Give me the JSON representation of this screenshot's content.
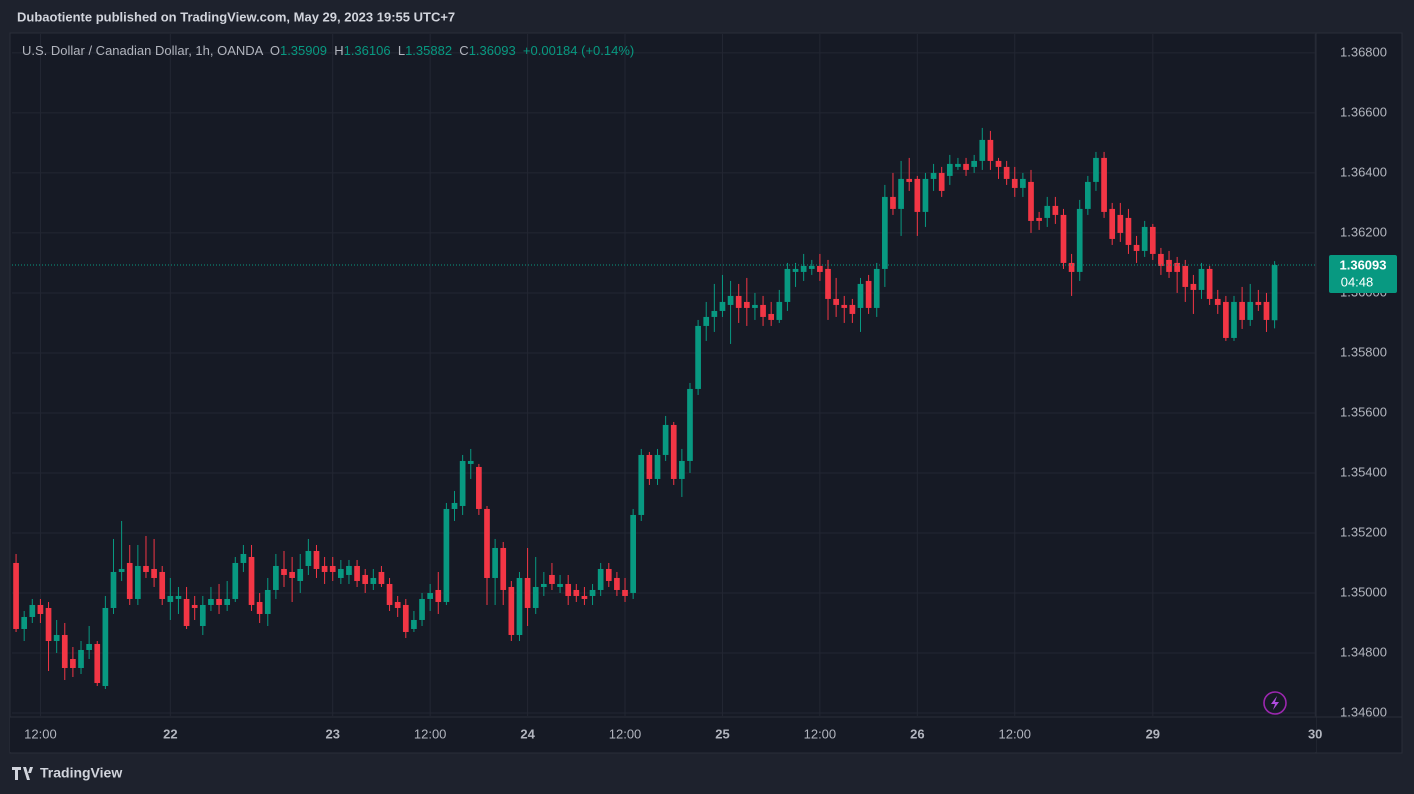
{
  "publisher_line": "Dubaotiente published on TradingView.com, May 29, 2023 19:55 UTC+7",
  "brand": "TradingView",
  "chart_data": {
    "type": "candlestick",
    "title": "U.S. Dollar / Canadian Dollar, 1h, OANDA",
    "ohlc_labels": [
      "O",
      "H",
      "L",
      "C"
    ],
    "change_label": "+0.00184 (+0.14%)",
    "countdown": "04:48",
    "up_color": "#089981",
    "down_color": "#f23645",
    "grid": true,
    "xlim": [
      -0.5,
      160.1
    ],
    "xticks": [
      {
        "value": 3,
        "label": "12:00"
      },
      {
        "value": 19,
        "label": "22"
      },
      {
        "value": 39,
        "label": "23"
      },
      {
        "value": 51,
        "label": "12:00"
      },
      {
        "value": 63,
        "label": "24"
      },
      {
        "value": 75,
        "label": "12:00"
      },
      {
        "value": 87,
        "label": "25"
      },
      {
        "value": 99,
        "label": "12:00"
      },
      {
        "value": 111,
        "label": "26"
      },
      {
        "value": 123,
        "label": "12:00"
      },
      {
        "value": 140,
        "label": "29"
      },
      {
        "value": 160,
        "label": "30"
      }
    ],
    "ylim": [
      1.3459,
      1.36863
    ],
    "yticks": [
      {
        "value": 1.346,
        "label": "1.34600"
      },
      {
        "value": 1.348,
        "label": "1.34800"
      },
      {
        "value": 1.35,
        "label": "1.35000"
      },
      {
        "value": 1.352,
        "label": "1.35200"
      },
      {
        "value": 1.354,
        "label": "1.35400"
      },
      {
        "value": 1.356,
        "label": "1.35600"
      },
      {
        "value": 1.358,
        "label": "1.35800"
      },
      {
        "value": 1.36,
        "label": "1.36000"
      },
      {
        "value": 1.362,
        "label": "1.36200"
      },
      {
        "value": 1.364,
        "label": "1.36400"
      },
      {
        "value": 1.366,
        "label": "1.36600"
      },
      {
        "value": 1.368,
        "label": "1.36800"
      }
    ],
    "open": [
      1.351,
      1.3488,
      1.3492,
      1.3496,
      1.3495,
      1.3484,
      1.3486,
      1.3478,
      1.3475,
      1.3481,
      1.3483,
      1.3469,
      1.3495,
      1.3507,
      1.351,
      1.3498,
      1.3509,
      1.3508,
      1.3507,
      1.3497,
      1.3498,
      1.3498,
      1.3496,
      1.3489,
      1.3496,
      1.3498,
      1.3496,
      1.3498,
      1.351,
      1.3512,
      1.3497,
      1.3493,
      1.3501,
      1.3508,
      1.3507,
      1.3504,
      1.3509,
      1.3514,
      1.3509,
      1.3509,
      1.3505,
      1.3506,
      1.3509,
      1.3506,
      1.3503,
      1.3507,
      1.3503,
      1.3497,
      1.3496,
      1.3488,
      1.3491,
      1.3498,
      1.3501,
      1.3497,
      1.3528,
      1.3529,
      1.3543,
      1.3542,
      1.3528,
      1.3505,
      1.3515,
      1.3502,
      1.3486,
      1.3505,
      1.3495,
      1.3502,
      1.3506,
      1.3502,
      1.3503,
      1.3501,
      1.3499,
      1.3499,
      1.3501,
      1.3508,
      1.3505,
      1.3501,
      1.35,
      1.3526,
      1.3546,
      1.3538,
      1.3546,
      1.3556,
      1.3538,
      1.3544,
      1.3568,
      1.3589,
      1.3592,
      1.3594,
      1.3596,
      1.3599,
      1.3597,
      1.3595,
      1.3596,
      1.3593,
      1.3591,
      1.3597,
      1.3607,
      1.3607,
      1.3608,
      1.3609,
      1.3608,
      1.3598,
      1.3596,
      1.3596,
      1.3595,
      1.3604,
      1.3595,
      1.3608,
      1.3632,
      1.3628,
      1.3638,
      1.3638,
      1.3627,
      1.3638,
      1.364,
      1.3639,
      1.3642,
      1.3643,
      1.3642,
      1.3644,
      1.3651,
      1.3644,
      1.3642,
      1.3638,
      1.3635,
      1.3637,
      1.3625,
      1.3625,
      1.3629,
      1.3626,
      1.361,
      1.3607,
      1.3628,
      1.3637,
      1.3645,
      1.3628,
      1.3626,
      1.3625,
      1.3616,
      1.3614,
      1.3622,
      1.3613,
      1.3611,
      1.361,
      1.3609,
      1.3603,
      1.3601,
      1.3608,
      1.3598,
      1.3597,
      1.3585,
      1.3597,
      1.3591,
      1.3597,
      1.3597,
      1.35909
    ],
    "high": [
      1.3513,
      1.3494,
      1.3498,
      1.3498,
      1.3497,
      1.3491,
      1.349,
      1.3482,
      1.3484,
      1.3489,
      1.3484,
      1.3499,
      1.3518,
      1.3524,
      1.3516,
      1.3516,
      1.3519,
      1.3518,
      1.3509,
      1.3505,
      1.3502,
      1.3502,
      1.3499,
      1.3499,
      1.3502,
      1.3503,
      1.3504,
      1.3512,
      1.3516,
      1.3516,
      1.35,
      1.3505,
      1.3513,
      1.3514,
      1.3512,
      1.3513,
      1.3518,
      1.3516,
      1.3512,
      1.3512,
      1.3511,
      1.3511,
      1.3511,
      1.3508,
      1.3508,
      1.3509,
      1.3505,
      1.3499,
      1.3498,
      1.3494,
      1.35,
      1.3503,
      1.3507,
      1.353,
      1.3534,
      1.3546,
      1.3548,
      1.3543,
      1.3529,
      1.3518,
      1.3517,
      1.3504,
      1.3507,
      1.3515,
      1.3512,
      1.3507,
      1.351,
      1.3506,
      1.3506,
      1.3503,
      1.3502,
      1.3503,
      1.351,
      1.351,
      1.3507,
      1.3505,
      1.3528,
      1.3548,
      1.3547,
      1.3548,
      1.3559,
      1.3557,
      1.3548,
      1.357,
      1.3591,
      1.3597,
      1.3603,
      1.3606,
      1.3604,
      1.3603,
      1.3605,
      1.36,
      1.3599,
      1.3597,
      1.3601,
      1.361,
      1.361,
      1.3613,
      1.3611,
      1.3613,
      1.3611,
      1.3605,
      1.3599,
      1.3598,
      1.3605,
      1.3606,
      1.361,
      1.3636,
      1.364,
      1.3644,
      1.3645,
      1.3639,
      1.364,
      1.3643,
      1.3642,
      1.3646,
      1.3645,
      1.3645,
      1.3646,
      1.3655,
      1.3654,
      1.3645,
      1.3644,
      1.3642,
      1.364,
      1.3641,
      1.3627,
      1.3632,
      1.3632,
      1.3628,
      1.3613,
      1.3631,
      1.3639,
      1.3647,
      1.3647,
      1.363,
      1.363,
      1.3628,
      1.3619,
      1.3624,
      1.3623,
      1.3615,
      1.3614,
      1.3612,
      1.3611,
      1.3606,
      1.361,
      1.3609,
      1.3601,
      1.3599,
      1.3599,
      1.3602,
      1.3603,
      1.3601,
      1.36,
      1.36106
    ],
    "low": [
      1.3487,
      1.3484,
      1.349,
      1.349,
      1.3474,
      1.348,
      1.3471,
      1.3472,
      1.3473,
      1.3478,
      1.3469,
      1.3468,
      1.3493,
      1.3504,
      1.3496,
      1.3496,
      1.3505,
      1.3502,
      1.3496,
      1.3491,
      1.3493,
      1.3488,
      1.3491,
      1.3486,
      1.3494,
      1.3493,
      1.3494,
      1.3497,
      1.3507,
      1.3494,
      1.349,
      1.3489,
      1.3498,
      1.3502,
      1.3497,
      1.35,
      1.3506,
      1.3505,
      1.3503,
      1.3504,
      1.3503,
      1.3503,
      1.3502,
      1.35,
      1.3501,
      1.3502,
      1.3494,
      1.3492,
      1.3485,
      1.3487,
      1.3489,
      1.3494,
      1.3493,
      1.3496,
      1.3524,
      1.3526,
      1.3538,
      1.3526,
      1.3496,
      1.3496,
      1.3496,
      1.3484,
      1.3484,
      1.3489,
      1.3493,
      1.3499,
      1.3501,
      1.35,
      1.3496,
      1.3497,
      1.3496,
      1.3496,
      1.3499,
      1.3502,
      1.3499,
      1.3497,
      1.3498,
      1.3524,
      1.3536,
      1.3536,
      1.3544,
      1.3536,
      1.3532,
      1.354,
      1.3566,
      1.3584,
      1.3587,
      1.3592,
      1.3583,
      1.359,
      1.3589,
      1.3591,
      1.3589,
      1.3589,
      1.359,
      1.3594,
      1.3602,
      1.3604,
      1.3606,
      1.3604,
      1.3591,
      1.3592,
      1.359,
      1.359,
      1.3587,
      1.3593,
      1.3592,
      1.3602,
      1.3626,
      1.3619,
      1.3634,
      1.3619,
      1.3622,
      1.3634,
      1.3632,
      1.3636,
      1.3641,
      1.3639,
      1.364,
      1.3641,
      1.3641,
      1.3638,
      1.3636,
      1.3632,
      1.3632,
      1.362,
      1.3621,
      1.3622,
      1.3623,
      1.3608,
      1.3599,
      1.3604,
      1.3626,
      1.3634,
      1.3625,
      1.3616,
      1.3617,
      1.3613,
      1.361,
      1.3612,
      1.3611,
      1.3606,
      1.3605,
      1.36,
      1.3597,
      1.3593,
      1.3598,
      1.3596,
      1.3593,
      1.3584,
      1.3584,
      1.3588,
      1.3589,
      1.3594,
      1.3587,
      1.35882
    ],
    "close": [
      1.3488,
      1.3492,
      1.3496,
      1.3493,
      1.3484,
      1.3486,
      1.3475,
      1.3475,
      1.3481,
      1.3483,
      1.347,
      1.3495,
      1.3507,
      1.3508,
      1.3498,
      1.3509,
      1.3507,
      1.3505,
      1.3498,
      1.3499,
      1.3499,
      1.3489,
      1.3495,
      1.3496,
      1.3498,
      1.3496,
      1.3498,
      1.351,
      1.3513,
      1.3496,
      1.3493,
      1.3501,
      1.3509,
      1.3506,
      1.3505,
      1.3508,
      1.3514,
      1.3508,
      1.3507,
      1.3507,
      1.3508,
      1.3509,
      1.3504,
      1.3503,
      1.3505,
      1.3503,
      1.3496,
      1.3495,
      1.3487,
      1.3491,
      1.3498,
      1.35,
      1.3497,
      1.3528,
      1.353,
      1.3544,
      1.3544,
      1.3528,
      1.3505,
      1.3515,
      1.3501,
      1.3486,
      1.3505,
      1.3495,
      1.3502,
      1.3503,
      1.3503,
      1.3503,
      1.3499,
      1.3499,
      1.3498,
      1.3501,
      1.3508,
      1.3504,
      1.3501,
      1.3499,
      1.3526,
      1.3546,
      1.3538,
      1.3546,
      1.3556,
      1.3538,
      1.3544,
      1.3568,
      1.3589,
      1.3592,
      1.3594,
      1.3597,
      1.3599,
      1.3595,
      1.3595,
      1.3596,
      1.3592,
      1.3591,
      1.3597,
      1.3608,
      1.3608,
      1.3609,
      1.3609,
      1.3607,
      1.3598,
      1.3596,
      1.3595,
      1.3593,
      1.3603,
      1.3595,
      1.3608,
      1.3632,
      1.3628,
      1.3638,
      1.3637,
      1.3627,
      1.3638,
      1.364,
      1.3634,
      1.3643,
      1.3643,
      1.3641,
      1.3644,
      1.3651,
      1.3644,
      1.3642,
      1.3638,
      1.3635,
      1.3638,
      1.3624,
      1.3624,
      1.3629,
      1.3626,
      1.361,
      1.3607,
      1.3628,
      1.3637,
      1.3645,
      1.3627,
      1.3618,
      1.362,
      1.3616,
      1.3614,
      1.3622,
      1.3613,
      1.3609,
      1.3607,
      1.3607,
      1.3602,
      1.3601,
      1.3608,
      1.3598,
      1.3596,
      1.3585,
      1.3597,
      1.3591,
      1.3597,
      1.3596,
      1.3591,
      1.36093
    ]
  }
}
